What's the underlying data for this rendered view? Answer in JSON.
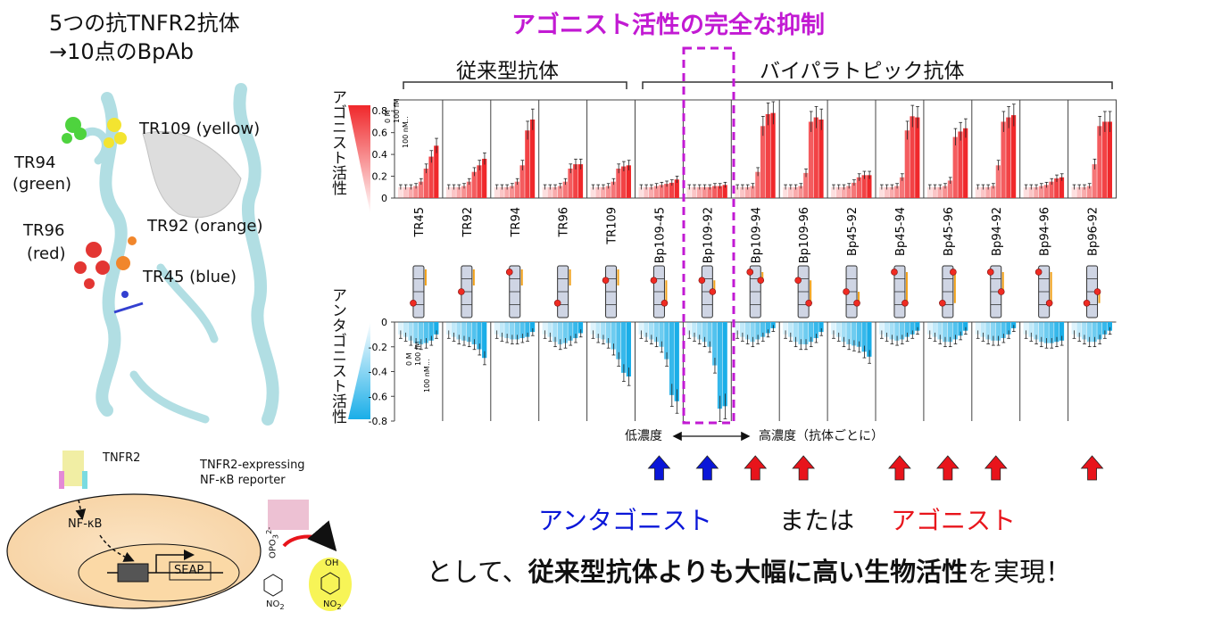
{
  "header": {
    "title_line1": "5つの抗TNFR2抗体",
    "title_line2": "→10点のBpAb",
    "highlight_title": "アゴニスト活性の完全な抑制"
  },
  "groups": {
    "conventional": "従来型抗体",
    "biparatopic": "バイパラトピック抗体"
  },
  "axes": {
    "agonist_label": "アゴニスト活性",
    "antagonist_label": "アンタゴニスト活性",
    "dose_low": "0 M",
    "dose_mid": "100 fM",
    "dose_dots": "...",
    "dose_high": "100 nM"
  },
  "structure_labels": {
    "tr109": "TR109 (yellow)",
    "tr94": "TR94",
    "tr94_color": "(green)",
    "tr96": "TR96",
    "tr96_color": "(red)",
    "tr92": "TR92 (orange)",
    "tr45": "TR45 (blue)"
  },
  "schematic": {
    "receptor": "TNFR2",
    "cell_line1": "TNFR2-expressing",
    "cell_line2": "NF-κB reporter",
    "nfkb": "NF-κB",
    "seap": "SEAP",
    "substrate": "OPO",
    "substrate_sub": "3",
    "substrate_sup": "2-",
    "no2": "NO",
    "no2_sub": "2",
    "oh": "OH"
  },
  "concentration": {
    "low": "低濃度",
    "high": "高濃度（抗体ごとに）"
  },
  "legend": {
    "antagonist": "アンタゴニスト",
    "or": "または",
    "agonist": "アゴニスト"
  },
  "conclusion": {
    "pre": "として、",
    "bold": "従来型抗体よりも大幅に高い生物活性",
    "post": "を実現！"
  },
  "colors": {
    "magenta": "#c21ad3",
    "agonist_red": "#e8141b",
    "antagonist_blue": "#0a16d8",
    "bar_red": "#f0282b",
    "bar_blue": "#1aaee8"
  },
  "chart_data": {
    "type": "bar",
    "title": "アゴニスト活性 / アンタゴニスト活性",
    "panels": [
      "TR45",
      "TR92",
      "TR94",
      "TR96",
      "TR109",
      "Bp109-45",
      "Bp109-92",
      "Bp109-94",
      "Bp109-96",
      "Bp45-92",
      "Bp45-94",
      "Bp45-96",
      "Bp94-92",
      "Bp94-96",
      "Bp96-92"
    ],
    "agonist_ylim": [
      0,
      0.9
    ],
    "agonist_ticks": [
      "0.8",
      "0.6",
      "0.4",
      "0.2",
      "0"
    ],
    "agonist_tick_values": [
      0.8,
      0.6,
      0.4,
      0.2,
      0
    ],
    "antagonist_ylim": [
      -0.8,
      0
    ],
    "antagonist_ticks": [
      "0",
      "-0.2",
      "-0.4",
      "-0.6",
      "-0.8"
    ],
    "antagonist_tick_values": [
      0,
      -0.2,
      -0.4,
      -0.6,
      -0.8
    ],
    "agonist": [
      [
        0.1,
        0.1,
        0.1,
        0.11,
        0.15,
        0.27,
        0.38,
        0.48
      ],
      [
        0.1,
        0.1,
        0.1,
        0.11,
        0.15,
        0.24,
        0.3,
        0.36
      ],
      [
        0.1,
        0.1,
        0.1,
        0.11,
        0.15,
        0.3,
        0.62,
        0.72
      ],
      [
        0.1,
        0.1,
        0.1,
        0.11,
        0.15,
        0.27,
        0.31,
        0.31
      ],
      [
        0.1,
        0.1,
        0.1,
        0.11,
        0.15,
        0.27,
        0.29,
        0.3
      ],
      [
        0.1,
        0.1,
        0.1,
        0.11,
        0.12,
        0.13,
        0.14,
        0.17
      ],
      [
        0.1,
        0.1,
        0.1,
        0.1,
        0.1,
        0.11,
        0.11,
        0.12
      ],
      [
        0.1,
        0.1,
        0.1,
        0.11,
        0.24,
        0.66,
        0.77,
        0.78
      ],
      [
        0.1,
        0.1,
        0.1,
        0.11,
        0.23,
        0.7,
        0.74,
        0.72
      ],
      [
        0.1,
        0.1,
        0.1,
        0.11,
        0.14,
        0.19,
        0.21,
        0.21
      ],
      [
        0.1,
        0.1,
        0.1,
        0.11,
        0.19,
        0.62,
        0.75,
        0.74
      ],
      [
        0.1,
        0.1,
        0.1,
        0.11,
        0.16,
        0.56,
        0.61,
        0.64
      ],
      [
        0.1,
        0.1,
        0.1,
        0.11,
        0.3,
        0.7,
        0.74,
        0.76
      ],
      [
        0.1,
        0.1,
        0.1,
        0.11,
        0.12,
        0.15,
        0.18,
        0.19
      ],
      [
        0.1,
        0.1,
        0.1,
        0.11,
        0.31,
        0.66,
        0.7,
        0.7
      ]
    ],
    "antagonist": [
      [
        -0.1,
        -0.12,
        -0.15,
        -0.17,
        -0.18,
        -0.17,
        -0.15,
        -0.1
      ],
      [
        -0.1,
        -0.12,
        -0.14,
        -0.15,
        -0.16,
        -0.18,
        -0.22,
        -0.29
      ],
      [
        -0.1,
        -0.12,
        -0.13,
        -0.14,
        -0.14,
        -0.13,
        -0.12,
        -0.08
      ],
      [
        -0.1,
        -0.12,
        -0.16,
        -0.18,
        -0.17,
        -0.15,
        -0.13,
        -0.09
      ],
      [
        -0.1,
        -0.13,
        -0.14,
        -0.17,
        -0.22,
        -0.3,
        -0.41,
        -0.44
      ],
      [
        -0.1,
        -0.12,
        -0.14,
        -0.16,
        -0.2,
        -0.3,
        -0.59,
        -0.64
      ],
      [
        -0.1,
        -0.12,
        -0.14,
        -0.16,
        -0.2,
        -0.35,
        -0.7,
        -0.68
      ],
      [
        -0.1,
        -0.12,
        -0.14,
        -0.16,
        -0.14,
        -0.12,
        -0.09,
        -0.05
      ],
      [
        -0.1,
        -0.12,
        -0.16,
        -0.18,
        -0.18,
        -0.16,
        -0.13,
        -0.08
      ],
      [
        -0.1,
        -0.12,
        -0.16,
        -0.18,
        -0.19,
        -0.2,
        -0.24,
        -0.28
      ],
      [
        -0.1,
        -0.12,
        -0.14,
        -0.15,
        -0.14,
        -0.12,
        -0.1,
        -0.07
      ],
      [
        -0.1,
        -0.12,
        -0.14,
        -0.16,
        -0.16,
        -0.14,
        -0.11,
        -0.07
      ],
      [
        -0.1,
        -0.12,
        -0.14,
        -0.15,
        -0.15,
        -0.13,
        -0.1,
        -0.05
      ],
      [
        -0.1,
        -0.12,
        -0.14,
        -0.16,
        -0.17,
        -0.17,
        -0.16,
        -0.15
      ],
      [
        -0.1,
        -0.12,
        -0.14,
        -0.16,
        -0.16,
        -0.14,
        -0.1,
        -0.07
      ]
    ],
    "binding_sites": [
      [
        0.72
      ],
      [
        0.5
      ],
      [
        0.12
      ],
      [
        0.72
      ],
      [
        0.28
      ],
      [
        0.28,
        0.72
      ],
      [
        0.28,
        0.5
      ],
      [
        0.12,
        0.28
      ],
      [
        0.28,
        0.72
      ],
      [
        0.5,
        0.72
      ],
      [
        0.12,
        0.72
      ],
      [
        0.72,
        0.12
      ],
      [
        0.12,
        0.5
      ],
      [
        0.12,
        0.72
      ],
      [
        0.72,
        0.5
      ]
    ],
    "arrows": [
      "blue",
      "blue",
      "red",
      "red",
      "none",
      "red",
      "red",
      "red",
      "none",
      "red"
    ]
  }
}
